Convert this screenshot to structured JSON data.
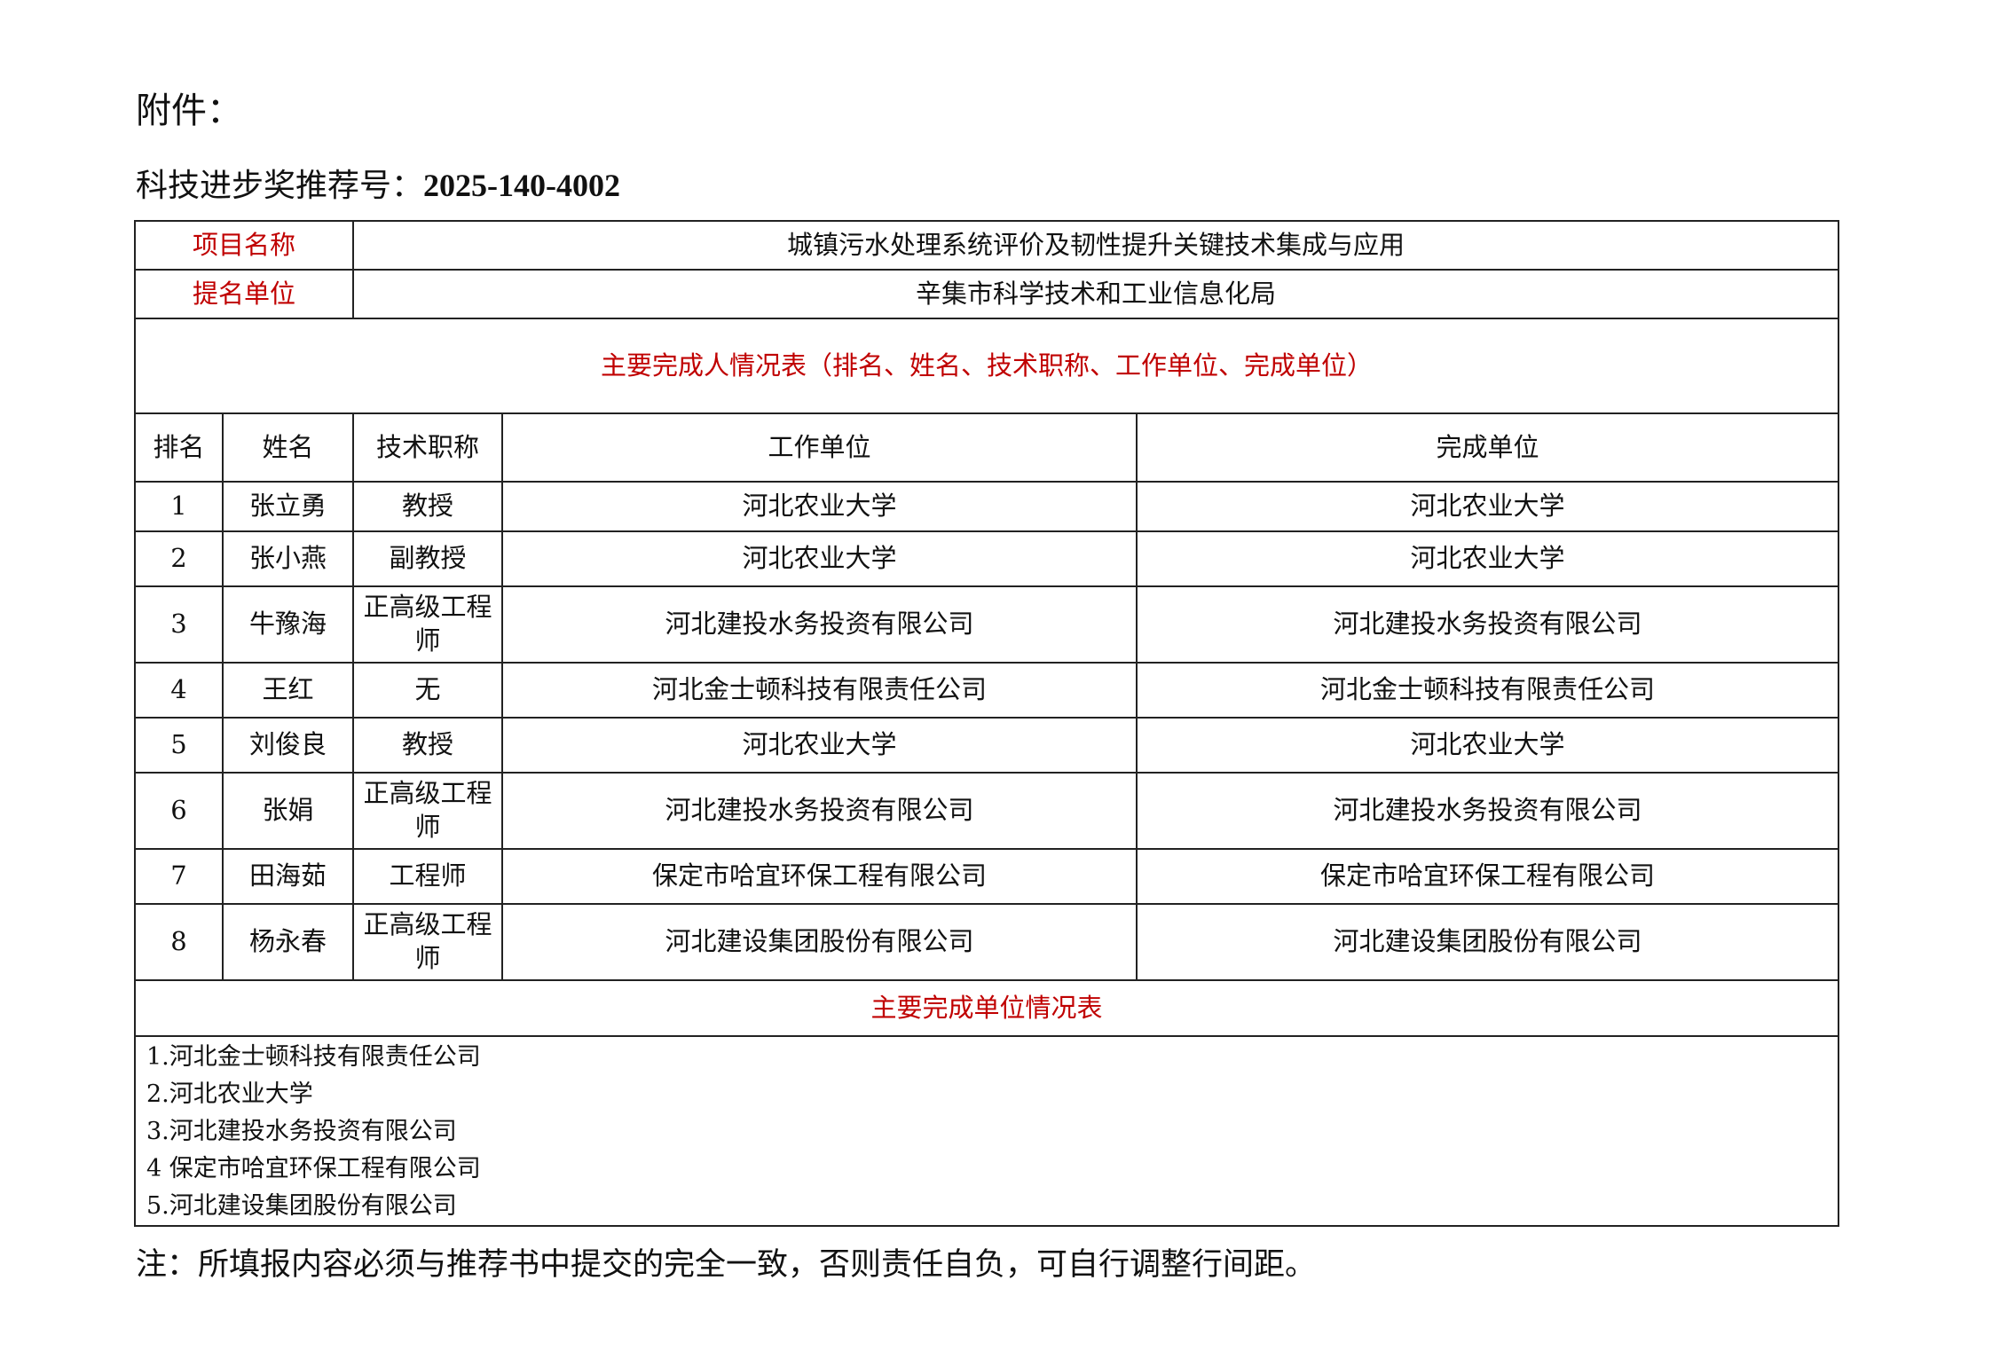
{
  "header": {
    "attachment_label": "附件：",
    "recommendation_label": "科技进步奖推荐号：",
    "recommendation_number": "2025-140-4002"
  },
  "project": {
    "name_label": "项目名称",
    "name_value": "城镇污水处理系统评价及韧性提升关键技术集成与应用",
    "nominator_label": "提名单位",
    "nominator_value": "辛集市科学技术和工业信息化局"
  },
  "persons_section_title": "主要完成人情况表（排名、姓名、技术职称、工作单位、完成单位）",
  "persons_columns": [
    "排名",
    "姓名",
    "技术职称",
    "工作单位",
    "完成单位"
  ],
  "persons": [
    {
      "rank": "1",
      "name": "张立勇",
      "title": "教授",
      "work_unit": "河北农业大学",
      "completion_unit": "河北农业大学"
    },
    {
      "rank": "2",
      "name": "张小燕",
      "title": "副教授",
      "work_unit": "河北农业大学",
      "completion_unit": "河北农业大学"
    },
    {
      "rank": "3",
      "name": "牛豫海",
      "title": "正高级工程师",
      "work_unit": "河北建投水务投资有限公司",
      "completion_unit": "河北建投水务投资有限公司"
    },
    {
      "rank": "4",
      "name": "王红",
      "title": "无",
      "work_unit": "河北金士顿科技有限责任公司",
      "completion_unit": "河北金士顿科技有限责任公司"
    },
    {
      "rank": "5",
      "name": "刘俊良",
      "title": "教授",
      "work_unit": "河北农业大学",
      "completion_unit": "河北农业大学"
    },
    {
      "rank": "6",
      "name": "张娟",
      "title": "正高级工程师",
      "work_unit": "河北建投水务投资有限公司",
      "completion_unit": "河北建投水务投资有限公司"
    },
    {
      "rank": "7",
      "name": "田海茹",
      "title": "工程师",
      "work_unit": "保定市哈宜环保工程有限公司",
      "completion_unit": "保定市哈宜环保工程有限公司"
    },
    {
      "rank": "8",
      "name": "杨永春",
      "title": "正高级工程师",
      "work_unit": "河北建设集团股份有限公司",
      "completion_unit": "河北建设集团股份有限公司"
    }
  ],
  "units_section_title": "主要完成单位情况表",
  "units": [
    "1.河北金士顿科技有限责任公司",
    "2.河北农业大学",
    "3.河北建投水务投资有限公司",
    "4 保定市哈宜环保工程有限公司",
    "5.河北建设集团股份有限公司"
  ],
  "note": "注：所填报内容必须与推荐书中提交的完全一致，否则责任自负，可自行调整行间距。",
  "colors": {
    "label_red": "#c00000",
    "text": "#111111",
    "border": "#222222"
  }
}
